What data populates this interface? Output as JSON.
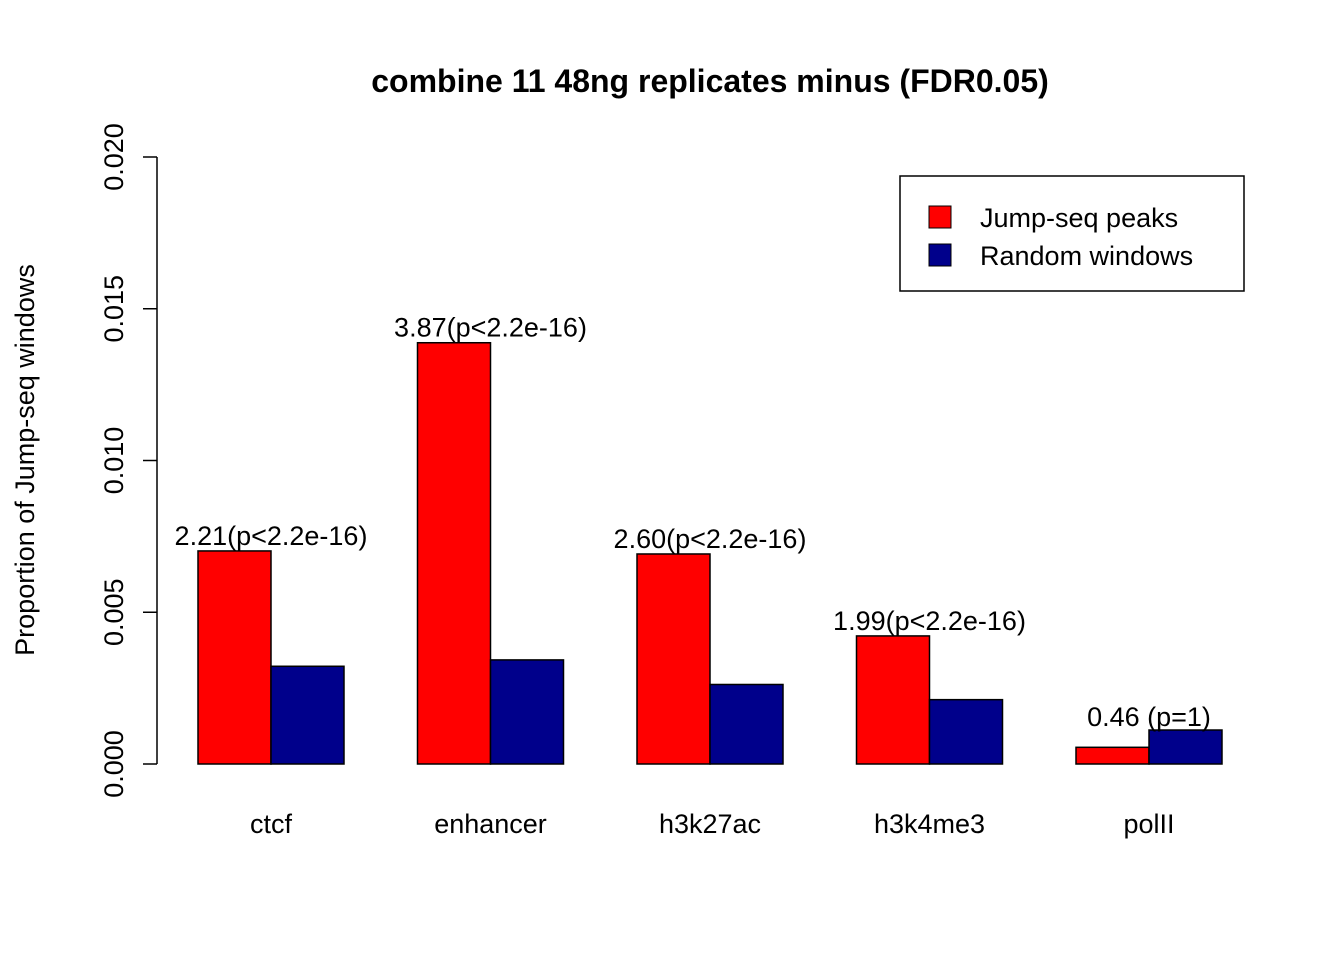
{
  "chart_data": {
    "type": "bar",
    "title": "combine 11 48ng replicates minus (FDR0.05)",
    "xlabel": "",
    "ylabel": "Proportion of Jump-seq windows",
    "ylim": [
      0,
      0.02
    ],
    "yticks": [
      "0.000",
      "0.005",
      "0.010",
      "0.015",
      "0.020"
    ],
    "ytick_values": [
      0,
      0.005,
      0.01,
      0.015,
      0.02
    ],
    "categories": [
      "ctcf",
      "enhancer",
      "h3k27ac",
      "h3k4me3",
      "polII"
    ],
    "series": [
      {
        "name": "Jump-seq peaks",
        "color": "#ff0000",
        "values": [
          0.00702,
          0.01388,
          0.00692,
          0.00422,
          0.00055
        ]
      },
      {
        "name": "Random windows",
        "color": "#00008b",
        "values": [
          0.00322,
          0.00343,
          0.00262,
          0.00212,
          0.00112
        ]
      }
    ],
    "bar_labels": [
      "2.21(p<2.2e-16)",
      "3.87(p<2.2e-16)",
      "2.60(p<2.2e-16)",
      "1.99(p<2.2e-16)",
      "0.46 (p=1)"
    ],
    "legend_position": "top-right",
    "grid": false
  }
}
